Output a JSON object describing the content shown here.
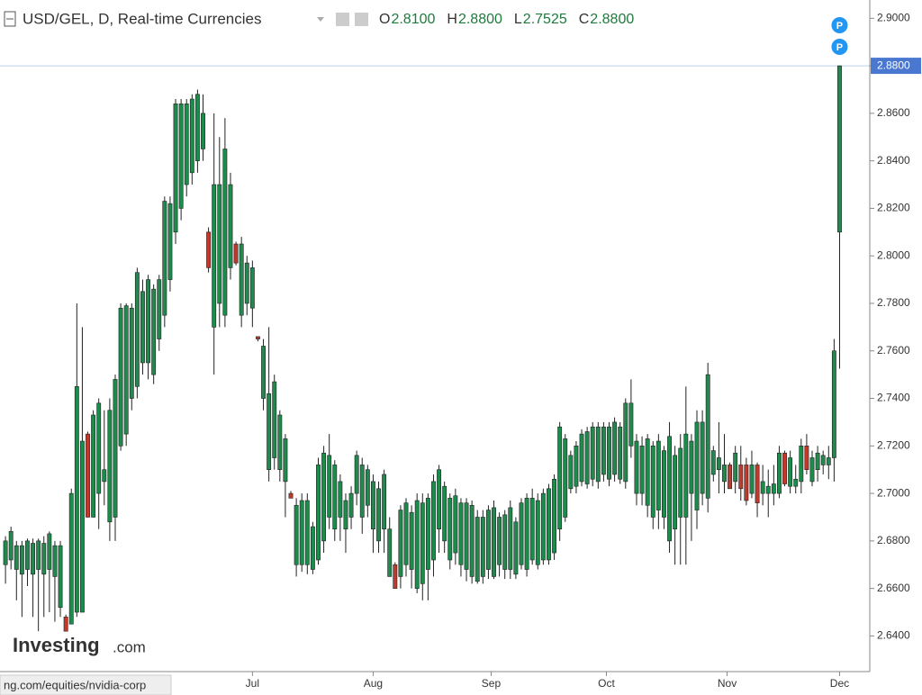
{
  "chart_data": {
    "type": "candlestick",
    "title": "USD/GEL, D, Real-time Currencies",
    "legend_values": [
      {
        "key": "O",
        "value": 2.81,
        "label": "2.8100"
      },
      {
        "key": "H",
        "value": 2.88,
        "label": "2.8800"
      },
      {
        "key": "L",
        "value": 2.7525,
        "label": "2.7525"
      },
      {
        "key": "C",
        "value": 2.88,
        "label": "2.8800"
      }
    ],
    "last_price": {
      "value": 2.88,
      "label": "2.8800"
    },
    "markers": [
      "P",
      "P"
    ],
    "watermark": {
      "brand": "Investing",
      "suffix": ".com"
    },
    "footer_url": "ng.com/equities/nvidia-corp",
    "up_color": "#1e8a4c",
    "down_color": "#c0392b",
    "xlim": [
      -1,
      157.5
    ],
    "xticks": [
      {
        "value": 45,
        "label": "Jul"
      },
      {
        "value": 67,
        "label": "Aug"
      },
      {
        "value": 88.5,
        "label": "Sep"
      },
      {
        "value": 109.5,
        "label": "Oct"
      },
      {
        "value": 131.5,
        "label": "Nov"
      },
      {
        "value": 152,
        "label": "Dec"
      }
    ],
    "ylim": [
      2.625,
      2.9077
    ],
    "yticks": [
      {
        "value": 2.64,
        "label": "2.6400"
      },
      {
        "value": 2.66,
        "label": "2.6600"
      },
      {
        "value": 2.68,
        "label": "2.6800"
      },
      {
        "value": 2.7,
        "label": "2.7000"
      },
      {
        "value": 2.72,
        "label": "2.7200"
      },
      {
        "value": 2.74,
        "label": "2.7400"
      },
      {
        "value": 2.76,
        "label": "2.7600"
      },
      {
        "value": 2.78,
        "label": "2.7800"
      },
      {
        "value": 2.8,
        "label": "2.8000"
      },
      {
        "value": 2.82,
        "label": "2.8200"
      },
      {
        "value": 2.84,
        "label": "2.8400"
      },
      {
        "value": 2.86,
        "label": "2.8600"
      },
      {
        "value": 2.88,
        "label": "2.8800"
      },
      {
        "value": 2.9,
        "label": "2.9000"
      }
    ],
    "ohlc": [
      [
        2.67,
        2.682,
        2.662,
        2.68
      ],
      [
        2.672,
        2.686,
        2.668,
        2.684
      ],
      [
        2.668,
        2.68,
        2.655,
        2.678
      ],
      [
        2.666,
        2.68,
        2.648,
        2.678
      ],
      [
        2.668,
        2.681,
        2.661,
        2.68
      ],
      [
        2.666,
        2.681,
        2.648,
        2.679
      ],
      [
        2.668,
        2.681,
        2.642,
        2.68
      ],
      [
        2.666,
        2.682,
        2.648,
        2.679
      ],
      [
        2.668,
        2.684,
        2.65,
        2.683
      ],
      [
        2.665,
        2.68,
        2.646,
        2.678
      ],
      [
        2.652,
        2.68,
        2.648,
        2.678
      ],
      [
        2.648,
        2.649,
        2.642,
        2.642
      ],
      [
        2.645,
        2.702,
        2.645,
        2.7
      ],
      [
        2.65,
        2.78,
        2.648,
        2.745
      ],
      [
        2.65,
        2.77,
        2.65,
        2.722
      ],
      [
        2.725,
        2.726,
        2.69,
        2.69
      ],
      [
        2.69,
        2.735,
        2.69,
        2.733
      ],
      [
        2.7,
        2.74,
        2.685,
        2.738
      ],
      [
        2.705,
        2.735,
        2.695,
        2.71
      ],
      [
        2.688,
        2.74,
        2.68,
        2.735
      ],
      [
        2.69,
        2.75,
        2.68,
        2.748
      ],
      [
        2.72,
        2.78,
        2.718,
        2.778
      ],
      [
        2.725,
        2.78,
        2.72,
        2.779
      ],
      [
        2.74,
        2.78,
        2.735,
        2.778
      ],
      [
        2.745,
        2.795,
        2.74,
        2.793
      ],
      [
        2.755,
        2.79,
        2.75,
        2.785
      ],
      [
        2.755,
        2.792,
        2.748,
        2.79
      ],
      [
        2.75,
        2.788,
        2.746,
        2.786
      ],
      [
        2.765,
        2.792,
        2.76,
        2.79
      ],
      [
        2.775,
        2.825,
        2.77,
        2.823
      ],
      [
        2.79,
        2.825,
        2.785,
        2.822
      ],
      [
        2.81,
        2.866,
        2.805,
        2.864
      ],
      [
        2.82,
        2.866,
        2.815,
        2.864
      ],
      [
        2.83,
        2.866,
        2.825,
        2.864
      ],
      [
        2.835,
        2.868,
        2.83,
        2.866
      ],
      [
        2.84,
        2.87,
        2.835,
        2.868
      ],
      [
        2.845,
        2.868,
        2.84,
        2.86
      ],
      [
        2.81,
        2.812,
        2.793,
        2.795
      ],
      [
        2.77,
        2.86,
        2.75,
        2.83
      ],
      [
        2.78,
        2.85,
        2.77,
        2.83
      ],
      [
        2.775,
        2.858,
        2.77,
        2.845
      ],
      [
        2.795,
        2.835,
        2.79,
        2.83
      ],
      [
        2.805,
        2.806,
        2.796,
        2.797
      ],
      [
        2.775,
        2.808,
        2.77,
        2.805
      ],
      [
        2.78,
        2.8,
        2.775,
        2.797
      ],
      [
        2.778,
        2.798,
        2.77,
        2.795
      ],
      [
        2.766,
        2.766,
        2.764,
        2.765
      ],
      [
        2.74,
        2.765,
        2.735,
        2.762
      ],
      [
        2.71,
        2.77,
        2.705,
        2.742
      ],
      [
        2.715,
        2.75,
        2.71,
        2.747
      ],
      [
        2.71,
        2.735,
        2.705,
        2.733
      ],
      [
        2.705,
        2.725,
        2.69,
        2.723
      ],
      [
        2.7,
        2.701,
        2.698,
        2.698
      ],
      [
        2.67,
        2.698,
        2.665,
        2.695
      ],
      [
        2.67,
        2.7,
        2.667,
        2.697
      ],
      [
        2.67,
        2.7,
        2.666,
        2.697
      ],
      [
        2.668,
        2.688,
        2.666,
        2.686
      ],
      [
        2.672,
        2.715,
        2.67,
        2.712
      ],
      [
        2.68,
        2.72,
        2.675,
        2.717
      ],
      [
        2.69,
        2.725,
        2.685,
        2.716
      ],
      [
        2.685,
        2.714,
        2.68,
        2.712
      ],
      [
        2.69,
        2.708,
        2.68,
        2.705
      ],
      [
        2.685,
        2.7,
        2.675,
        2.697
      ],
      [
        2.69,
        2.703,
        2.685,
        2.7
      ],
      [
        2.7,
        2.718,
        2.695,
        2.716
      ],
      [
        2.69,
        2.715,
        2.683,
        2.712
      ],
      [
        2.695,
        2.712,
        2.69,
        2.71
      ],
      [
        2.685,
        2.708,
        2.675,
        2.705
      ],
      [
        2.68,
        2.705,
        2.675,
        2.702
      ],
      [
        2.685,
        2.71,
        2.675,
        2.708
      ],
      [
        2.665,
        2.69,
        2.665,
        2.685
      ],
      [
        2.67,
        2.671,
        2.66,
        2.66
      ],
      [
        2.665,
        2.695,
        2.66,
        2.693
      ],
      [
        2.67,
        2.698,
        2.665,
        2.696
      ],
      [
        2.668,
        2.695,
        2.66,
        2.692
      ],
      [
        2.66,
        2.7,
        2.658,
        2.697
      ],
      [
        2.662,
        2.7,
        2.655,
        2.696
      ],
      [
        2.668,
        2.7,
        2.655,
        2.698
      ],
      [
        2.672,
        2.708,
        2.665,
        2.705
      ],
      [
        2.685,
        2.712,
        2.675,
        2.71
      ],
      [
        2.68,
        2.705,
        2.675,
        2.703
      ],
      [
        2.672,
        2.7,
        2.668,
        2.698
      ],
      [
        2.675,
        2.702,
        2.67,
        2.699
      ],
      [
        2.67,
        2.698,
        2.665,
        2.696
      ],
      [
        2.668,
        2.698,
        2.663,
        2.696
      ],
      [
        2.665,
        2.697,
        2.662,
        2.695
      ],
      [
        2.663,
        2.693,
        2.662,
        2.69
      ],
      [
        2.665,
        2.693,
        2.662,
        2.69
      ],
      [
        2.668,
        2.695,
        2.664,
        2.693
      ],
      [
        2.665,
        2.697,
        2.664,
        2.694
      ],
      [
        2.67,
        2.692,
        2.665,
        2.69
      ],
      [
        2.668,
        2.693,
        2.664,
        2.691
      ],
      [
        2.668,
        2.697,
        2.664,
        2.694
      ],
      [
        2.666,
        2.69,
        2.664,
        2.688
      ],
      [
        2.67,
        2.698,
        2.668,
        2.696
      ],
      [
        2.668,
        2.7,
        2.665,
        2.698
      ],
      [
        2.672,
        2.702,
        2.67,
        2.698
      ],
      [
        2.67,
        2.7,
        2.668,
        2.697
      ],
      [
        2.672,
        2.702,
        2.67,
        2.7
      ],
      [
        2.672,
        2.704,
        2.67,
        2.702
      ],
      [
        2.675,
        2.708,
        2.672,
        2.706
      ],
      [
        2.685,
        2.73,
        2.68,
        2.728
      ],
      [
        2.69,
        2.725,
        2.688,
        2.723
      ],
      [
        2.702,
        2.718,
        2.7,
        2.716
      ],
      [
        2.703,
        2.722,
        2.7,
        2.72
      ],
      [
        2.705,
        2.727,
        2.703,
        2.725
      ],
      [
        2.704,
        2.728,
        2.702,
        2.726
      ],
      [
        2.706,
        2.73,
        2.703,
        2.728
      ],
      [
        2.705,
        2.73,
        2.702,
        2.728
      ],
      [
        2.708,
        2.73,
        2.705,
        2.728
      ],
      [
        2.706,
        2.73,
        2.703,
        2.728
      ],
      [
        2.708,
        2.732,
        2.705,
        2.73
      ],
      [
        2.706,
        2.73,
        2.704,
        2.728
      ],
      [
        2.705,
        2.74,
        2.702,
        2.738
      ],
      [
        2.72,
        2.748,
        2.715,
        2.738
      ],
      [
        2.7,
        2.725,
        2.695,
        2.722
      ],
      [
        2.7,
        2.724,
        2.695,
        2.72
      ],
      [
        2.695,
        2.725,
        2.69,
        2.723
      ],
      [
        2.69,
        2.722,
        2.685,
        2.72
      ],
      [
        2.693,
        2.725,
        2.685,
        2.722
      ],
      [
        2.69,
        2.72,
        2.685,
        2.718
      ],
      [
        2.68,
        2.73,
        2.675,
        2.724
      ],
      [
        2.685,
        2.72,
        2.67,
        2.716
      ],
      [
        2.69,
        2.725,
        2.67,
        2.719
      ],
      [
        2.69,
        2.745,
        2.67,
        2.725
      ],
      [
        2.7,
        2.725,
        2.68,
        2.722
      ],
      [
        2.693,
        2.735,
        2.685,
        2.73
      ],
      [
        2.7,
        2.735,
        2.695,
        2.73
      ],
      [
        2.698,
        2.755,
        2.692,
        2.75
      ],
      [
        2.708,
        2.72,
        2.705,
        2.718
      ],
      [
        2.71,
        2.73,
        2.7,
        2.715
      ],
      [
        2.705,
        2.725,
        2.7,
        2.712
      ],
      [
        2.712,
        2.713,
        2.702,
        2.702
      ],
      [
        2.705,
        2.72,
        2.7,
        2.717
      ],
      [
        2.712,
        2.72,
        2.697,
        2.702
      ],
      [
        2.712,
        2.715,
        2.695,
        2.697
      ],
      [
        2.7,
        2.718,
        2.698,
        2.712
      ],
      [
        2.712,
        2.713,
        2.69,
        2.696
      ],
      [
        2.7,
        2.712,
        2.695,
        2.705
      ],
      [
        2.7,
        2.71,
        2.69,
        2.703
      ],
      [
        2.7,
        2.712,
        2.695,
        2.704
      ],
      [
        2.7,
        2.72,
        2.698,
        2.717
      ],
      [
        2.717,
        2.718,
        2.703,
        2.704
      ],
      [
        2.703,
        2.718,
        2.7,
        2.715
      ],
      [
        2.703,
        2.712,
        2.7,
        2.706
      ],
      [
        2.705,
        2.723,
        2.7,
        2.72
      ],
      [
        2.72,
        2.725,
        2.708,
        2.71
      ],
      [
        2.705,
        2.718,
        2.703,
        2.715
      ],
      [
        2.71,
        2.72,
        2.705,
        2.717
      ],
      [
        2.712,
        2.718,
        2.708,
        2.716
      ],
      [
        2.712,
        2.72,
        2.706,
        2.715
      ],
      [
        2.715,
        2.765,
        2.705,
        2.76
      ],
      [
        2.81,
        2.88,
        2.7525,
        2.88
      ]
    ]
  }
}
